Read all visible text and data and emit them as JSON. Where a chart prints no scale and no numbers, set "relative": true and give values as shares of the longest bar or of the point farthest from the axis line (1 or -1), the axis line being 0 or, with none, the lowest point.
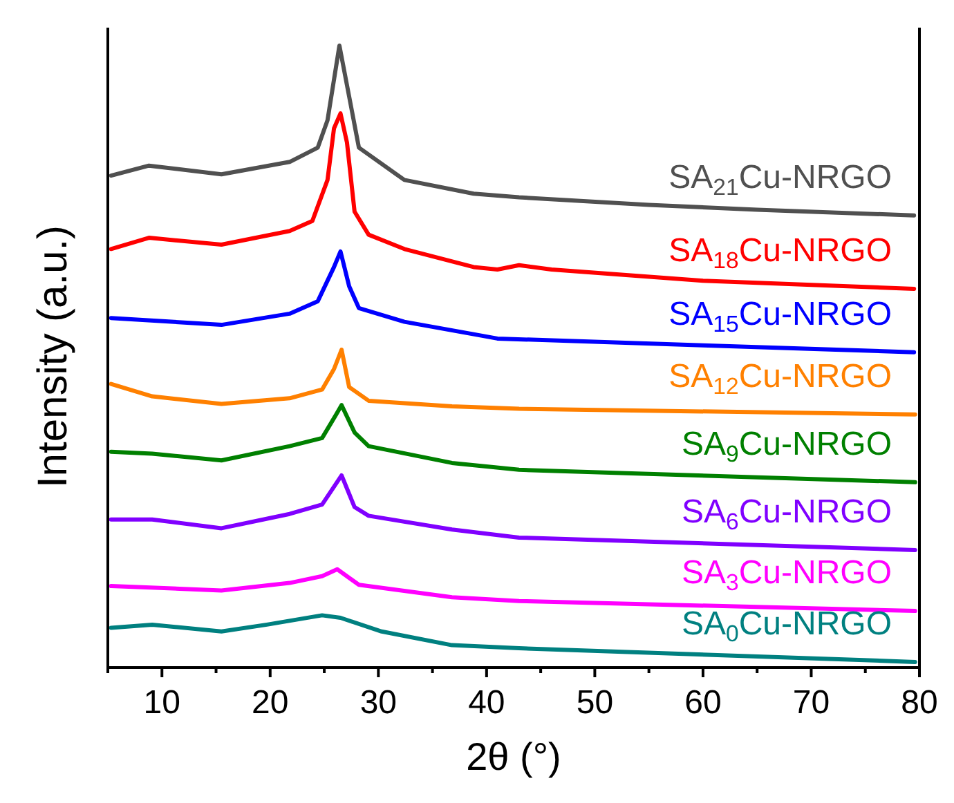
{
  "chart_data": {
    "type": "line",
    "relative": true,
    "xlabel": "2θ (°)",
    "ylabel": "Intensity (a.u.)",
    "xlim": [
      5,
      80
    ],
    "xticks": [
      {
        "value": 5,
        "label": null
      },
      10,
      {
        "value": 15,
        "label": null
      },
      20,
      {
        "value": 25,
        "label": null
      },
      30,
      {
        "value": 35,
        "label": null
      },
      40,
      {
        "value": 45,
        "label": null
      },
      50,
      {
        "value": 55,
        "label": null
      },
      60,
      {
        "value": 65,
        "label": null
      },
      70,
      {
        "value": 75,
        "label": null
      },
      80
    ],
    "tick_labels": "x",
    "grid": false,
    "marker": "none",
    "line_style": "solid",
    "series": [
      {
        "name": "SA$_{21}$Cu-NRGO",
        "color": "#505050",
        "x": [
          5.3,
          8.8,
          15.5,
          21.8,
          24.4,
          25.3,
          26.4,
          27.3,
          28.2,
          32.4,
          38.8,
          43,
          55,
          65,
          79.5
        ],
        "values": [
          0.791,
          0.807,
          0.793,
          0.813,
          0.836,
          0.88,
          1.0,
          0.918,
          0.836,
          0.784,
          0.762,
          0.756,
          0.744,
          0.736,
          0.727
        ]
      },
      {
        "name": "SA$_{18}$Cu-NRGO",
        "color": "#ff0000",
        "x": [
          5.3,
          8.8,
          15.5,
          21.8,
          23.9,
          25.3,
          25.9,
          26.5,
          27.1,
          27.8,
          29.1,
          32.4,
          38.8,
          41,
          43,
          46,
          60,
          79.5
        ],
        "values": [
          0.673,
          0.691,
          0.68,
          0.702,
          0.718,
          0.784,
          0.867,
          0.891,
          0.844,
          0.733,
          0.696,
          0.673,
          0.644,
          0.64,
          0.647,
          0.64,
          0.622,
          0.609
        ]
      },
      {
        "name": "SA$_{15}$Cu-NRGO",
        "color": "#0000ff",
        "x": [
          5.3,
          15.5,
          21.8,
          24.4,
          25.9,
          26.5,
          27.3,
          28.2,
          32.4,
          38.8,
          41,
          60,
          79.5
        ],
        "values": [
          0.562,
          0.551,
          0.569,
          0.589,
          0.644,
          0.669,
          0.613,
          0.578,
          0.556,
          0.536,
          0.529,
          0.518,
          0.507
        ]
      },
      {
        "name": "SA$_{12}$Cu-NRGO",
        "color": "#ff8000",
        "x": [
          5.3,
          9.1,
          15.5,
          21.8,
          24.8,
          25.9,
          26.6,
          27.3,
          29.1,
          36.8,
          43,
          79.6
        ],
        "values": [
          0.456,
          0.436,
          0.424,
          0.433,
          0.447,
          0.48,
          0.511,
          0.451,
          0.429,
          0.42,
          0.416,
          0.407
        ]
      },
      {
        "name": "SA$_{9}$Cu-NRGO",
        "color": "#008000",
        "x": [
          5.3,
          9.1,
          15.5,
          21.8,
          24.8,
          26.1,
          26.6,
          27.8,
          29.1,
          36.8,
          43,
          79.6
        ],
        "values": [
          0.347,
          0.344,
          0.333,
          0.356,
          0.369,
          0.407,
          0.422,
          0.378,
          0.356,
          0.329,
          0.318,
          0.298
        ]
      },
      {
        "name": "SA$_{6}$Cu-NRGO",
        "color": "#8000ff",
        "x": [
          5.3,
          9.1,
          15.5,
          21.8,
          24.8,
          26.1,
          26.6,
          27.8,
          29.1,
          36.8,
          43,
          79.6
        ],
        "values": [
          0.238,
          0.238,
          0.224,
          0.247,
          0.262,
          0.296,
          0.309,
          0.258,
          0.244,
          0.222,
          0.209,
          0.189
        ]
      },
      {
        "name": "SA$_{3}$Cu-NRGO",
        "color": "#ff00ff",
        "x": [
          5.3,
          15.5,
          21.8,
          24.8,
          26.2,
          28.2,
          36.8,
          43,
          79.6
        ],
        "values": [
          0.131,
          0.124,
          0.136,
          0.147,
          0.158,
          0.133,
          0.113,
          0.107,
          0.091
        ]
      },
      {
        "name": "SA$_{0}$Cu-NRGO",
        "color": "#008080",
        "x": [
          5.3,
          9.1,
          15.5,
          19.7,
          24.8,
          26.5,
          30.3,
          36.8,
          43,
          79.6
        ],
        "values": [
          0.064,
          0.069,
          0.058,
          0.069,
          0.084,
          0.08,
          0.058,
          0.036,
          0.031,
          0.009
        ]
      }
    ]
  }
}
